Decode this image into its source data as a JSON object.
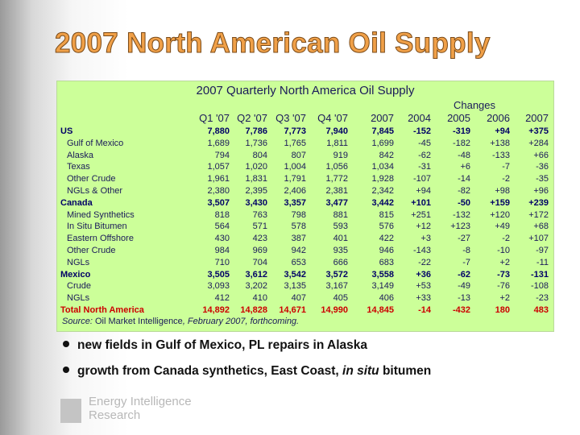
{
  "title": "2007 North American Oil Supply",
  "table": {
    "title": "2007 Quarterly North America Oil Supply",
    "group_header": "Changes",
    "columns": [
      "Q1 '07",
      "Q2 '07",
      "Q3 '07",
      "Q4 '07",
      "2007",
      "2004",
      "2005",
      "2006",
      "2007"
    ],
    "rows": [
      [
        "US",
        "7,880",
        "7,786",
        "7,773",
        "7,940",
        "7,845",
        "-152",
        "-319",
        "+94",
        "+375"
      ],
      [
        "Gulf of Mexico",
        "1,689",
        "1,736",
        "1,765",
        "1,811",
        "1,699",
        "-45",
        "-182",
        "+138",
        "+284"
      ],
      [
        "Alaska",
        "794",
        "804",
        "807",
        "919",
        "842",
        "-62",
        "-48",
        "-133",
        "+66"
      ],
      [
        "Texas",
        "1,057",
        "1,020",
        "1,004",
        "1,056",
        "1,034",
        "-31",
        "+6",
        "-7",
        "-36"
      ],
      [
        "Other Crude",
        "1,961",
        "1,831",
        "1,791",
        "1,772",
        "1,928",
        "-107",
        "-14",
        "-2",
        "-35"
      ],
      [
        "NGLs & Other",
        "2,380",
        "2,395",
        "2,406",
        "2,381",
        "2,342",
        "+94",
        "-82",
        "+98",
        "+96"
      ],
      [
        "Canada",
        "3,507",
        "3,430",
        "3,357",
        "3,477",
        "3,442",
        "+101",
        "-50",
        "+159",
        "+239"
      ],
      [
        "Mined Synthetics",
        "818",
        "763",
        "798",
        "881",
        "815",
        "+251",
        "-132",
        "+120",
        "+172"
      ],
      [
        "In Situ Bitumen",
        "564",
        "571",
        "578",
        "593",
        "576",
        "+12",
        "+123",
        "+49",
        "+68"
      ],
      [
        "Eastern Offshore",
        "430",
        "423",
        "387",
        "401",
        "422",
        "+3",
        "-27",
        "-2",
        "+107"
      ],
      [
        "Other Crude",
        "984",
        "969",
        "942",
        "935",
        "946",
        "-143",
        "-8",
        "-10",
        "-97"
      ],
      [
        "NGLs",
        "710",
        "704",
        "653",
        "666",
        "683",
        "-22",
        "-7",
        "+2",
        "-11"
      ],
      [
        "Mexico",
        "3,505",
        "3,612",
        "3,542",
        "3,572",
        "3,558",
        "+36",
        "-62",
        "-73",
        "-131"
      ],
      [
        "Crude",
        "3,093",
        "3,202",
        "3,135",
        "3,167",
        "3,149",
        "+53",
        "-49",
        "-76",
        "-108"
      ],
      [
        "NGLs",
        "412",
        "410",
        "407",
        "405",
        "406",
        "+33",
        "-13",
        "+2",
        "-23"
      ],
      [
        "Total North America",
        "14,892",
        "14,828",
        "14,671",
        "14,990",
        "14,845",
        "-14",
        "-432",
        "180",
        "483"
      ]
    ],
    "source": [
      "Source:",
      " Oil Market Intelligence",
      ", February 2007, forthcoming."
    ]
  },
  "bullets": [
    [
      "new fields in Gulf of Mexico, PL repairs in Alaska"
    ],
    [
      "growth from Canada synthetics, East Coast, ",
      "in situ",
      " bitumen"
    ]
  ],
  "logo": [
    "Energy Intelligence",
    "Research"
  ]
}
